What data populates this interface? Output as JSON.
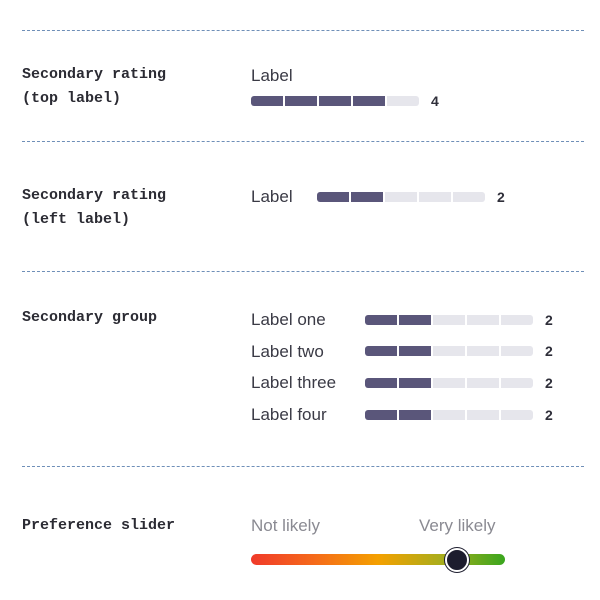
{
  "sections": {
    "top_label": {
      "title": "Secondary rating\n(top label)",
      "label": "Label",
      "value": "4",
      "segments_total": 5,
      "segments_filled": 4
    },
    "left_label": {
      "title": "Secondary rating\n(left label)",
      "label": "Label",
      "value": "2",
      "segments_total": 5,
      "segments_filled": 2
    },
    "group": {
      "title": "Secondary group",
      "items": [
        {
          "label": "Label one",
          "value": "2",
          "segments_total": 5,
          "segments_filled": 2
        },
        {
          "label": "Label two",
          "value": "2",
          "segments_total": 5,
          "segments_filled": 2
        },
        {
          "label": "Label three",
          "value": "2",
          "segments_total": 5,
          "segments_filled": 2
        },
        {
          "label": "Label four",
          "value": "2",
          "segments_total": 5,
          "segments_filled": 2
        }
      ]
    },
    "preference": {
      "title": "Preference slider",
      "min_label": "Not likely",
      "max_label": "Very likely",
      "value_fraction": 0.81
    }
  },
  "colors": {
    "segment_filled": "#5a567a",
    "segment_empty": "#e6e6ec",
    "divider": "#6f8fb8",
    "gradient_start": "#f03a2a",
    "gradient_mid": "#f4a000",
    "gradient_end": "#3aa61e",
    "thumb": "#1d1d2e"
  }
}
